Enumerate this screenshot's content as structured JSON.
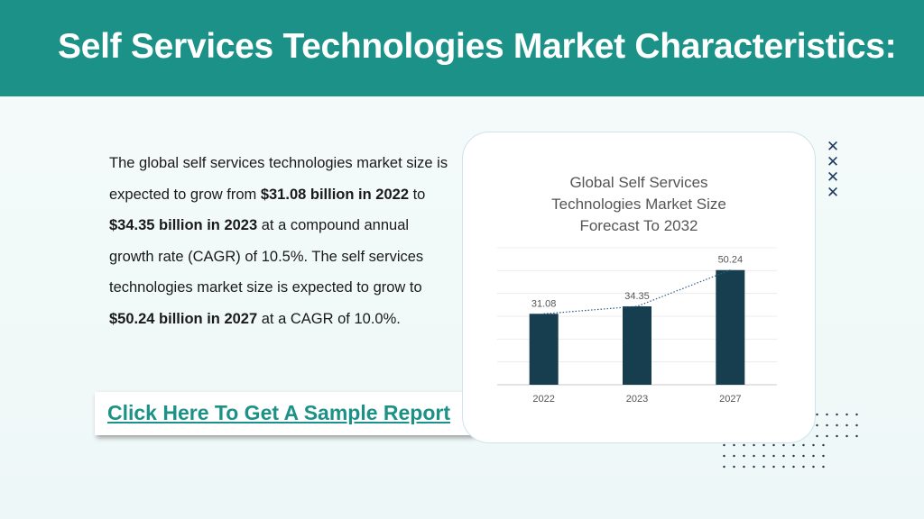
{
  "header": {
    "title": "Self Services Technologies Market Characteristics",
    "title_colon": ":"
  },
  "body": {
    "p1": "The global self services technologies market size is expected to grow from ",
    "b1": "$31.08 billion in 2022",
    "p2": " to ",
    "b2": "$34.35 billion in 2023",
    "p3": " at a compound annual growth rate (CAGR) of 10.5%. The self services technologies market size is expected to grow to ",
    "b3": "$50.24 billion in 2027",
    "p4": " at a CAGR of 10.0%."
  },
  "cta": {
    "label": "Click Here To Get A Sample Report"
  },
  "decor": {
    "x_marks": "×××× "
  },
  "colors": {
    "header_bg": "#1c9187",
    "bar": "#173e4f",
    "link": "#1c9187",
    "trend": "#2b5c8a"
  },
  "chart_data": {
    "type": "bar",
    "title_lines": [
      "Global Self Services",
      "Technologies Market Size",
      "Forecast To 2032"
    ],
    "categories": [
      "2022",
      "2023",
      "2027"
    ],
    "values": [
      31.08,
      34.35,
      50.24
    ],
    "value_labels": [
      "31.08",
      "34.35",
      "50.24"
    ],
    "xlabel": "",
    "ylabel": "",
    "ylim": [
      0,
      60
    ],
    "grid": true,
    "trendline": "dotted",
    "legend": "none"
  }
}
